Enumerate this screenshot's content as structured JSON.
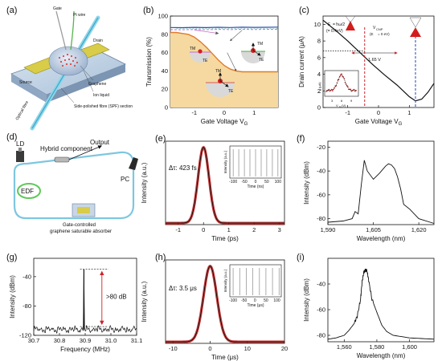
{
  "panels": {
    "a": {
      "tag": "(a)",
      "labels": [
        "Gate",
        "Pt wire",
        "Drain",
        "Source",
        "Graphene",
        "Ion liquid",
        "Side-polished fibre (SPF) section",
        "Optical fibre"
      ]
    },
    "b": {
      "tag": "(b)",
      "xlabel": "Gate Voltage V",
      "xlabel_sub": "G",
      "ylabel": "Transmission (%)",
      "xticks": [
        "-1",
        "0",
        "1"
      ],
      "yticks": [
        "0",
        "20",
        "40",
        "60",
        "80",
        "100"
      ],
      "inset_labels": [
        "TM",
        "TE"
      ]
    },
    "c": {
      "tag": "(c)",
      "xlabel": "Gate Voltage V",
      "xlabel_sub": "G",
      "ylabel": "Drain current (μA)",
      "xticks": [
        "-1",
        "0",
        "1"
      ],
      "yticks": [
        "0",
        "2",
        "4",
        "6",
        "8",
        "10"
      ],
      "annotations": [
        "1.65 V",
        "V",
        "CNP",
        "(E",
        "= 0 eV)",
        "E",
        "= ħω/2",
        "(= 0.4eV)"
      ],
      "inset_labels": [
        "I",
        "D",
        "(μA)",
        "V",
        "G",
        "(V)",
        "3",
        "6",
        "9"
      ]
    },
    "d": {
      "tag": "(d)",
      "labels": [
        "LD",
        "Hybrid component",
        "Output",
        "PC",
        "EDF",
        "Gate-controlled",
        "graphene saturable absorber"
      ]
    },
    "e": {
      "tag": "(e)",
      "annotation": "Δτ: 423 fs",
      "xlabel": "Time (ps)",
      "ylabel": "Intensity (a.u.)",
      "xticks": [
        "-1",
        "0",
        "1",
        "2",
        "3"
      ],
      "inset": {
        "xlabel": "Time (ns)",
        "ylabel": "Intensity (a.u.)",
        "xticks": [
          "-100",
          "-50",
          "0",
          "50",
          "100"
        ]
      }
    },
    "f": {
      "tag": "(f)",
      "xlabel": "Wavelength (nm)",
      "ylabel": "Intensity (dBm)",
      "xticks": [
        "1,590",
        "1,605",
        "1,620"
      ],
      "yticks": [
        "-80",
        "-60",
        "-40",
        "-20"
      ]
    },
    "g": {
      "tag": "(g)",
      "annotation": ">80 dB",
      "xlabel": "Frequency (MHz)",
      "ylabel": "Intensity (dBm)",
      "xticks": [
        "30.7",
        "30.8",
        "30.9",
        "31.0",
        "31.1"
      ],
      "yticks": [
        "-120",
        "-80",
        "-40"
      ]
    },
    "h": {
      "tag": "(h)",
      "annotation": "Δτ: 3.5 μs",
      "xlabel": "Time (μs)",
      "ylabel": "Intensity (a.u.)",
      "xticks": [
        "-10",
        "0",
        "10",
        "20"
      ],
      "inset": {
        "xlabel": "Time (μs)",
        "ylabel": "Intensity (a.u.)",
        "xticks": [
          "-100",
          "-50",
          "0",
          "50",
          "100"
        ]
      }
    },
    "i": {
      "tag": "(i)",
      "xlabel": "Wavelength (nm)",
      "ylabel": "Intensity (dBm)",
      "xticks": [
        "1,560",
        "1,580",
        "1,600"
      ],
      "yticks": [
        "-80",
        "-60",
        "-40"
      ]
    }
  },
  "chart_data": [
    {
      "panel": "b",
      "type": "line",
      "xlim": [
        -1.8,
        1.8
      ],
      "ylim": [
        0,
        100
      ],
      "series": [
        {
          "values_x": [
            -1.8,
            -1.4,
            -1.0,
            -0.6,
            -0.2,
            0.2,
            0.6,
            1.0,
            1.4,
            1.8
          ],
          "values_y": [
            87.5,
            87.3,
            87.6,
            87.4,
            87.7,
            87.5,
            87.8,
            87.6,
            87.7,
            87.9
          ],
          "color": "#2a4fb0"
        },
        {
          "values_x": [
            -1.8,
            -1.4,
            -1.0,
            -0.6,
            -0.2,
            0.2,
            0.6,
            1.0,
            1.4,
            1.8
          ],
          "values_y": [
            85.2,
            85.0,
            85.3,
            85.1,
            85.4,
            85.2,
            85.5,
            85.3,
            85.4,
            85.6
          ],
          "color": "#c070c0"
        },
        {
          "values_x": [
            -1.8,
            -1.6,
            -1.4,
            -1.2,
            -1.0,
            -0.8,
            -0.6,
            -0.4,
            -0.2,
            0.0,
            0.2,
            0.4,
            0.6,
            0.8,
            1.0,
            1.2,
            1.4,
            1.6,
            1.8
          ],
          "values_y": [
            82,
            82,
            81,
            80,
            77,
            72,
            66,
            59,
            52,
            46,
            42,
            40,
            39,
            39,
            39,
            39,
            39,
            39,
            39
          ],
          "color": "#e07a2a",
          "fill": "#f5d9a0"
        }
      ]
    },
    {
      "panel": "c",
      "type": "line",
      "xlim": [
        -1.8,
        1.8
      ],
      "ylim": [
        0,
        11
      ],
      "series": [
        {
          "values_x": [
            -1.8,
            -1.4,
            -1.0,
            -0.6,
            -0.2,
            0.2,
            0.6,
            1.0,
            1.2,
            1.4,
            1.6,
            1.8
          ],
          "values_y": [
            10.5,
            9.3,
            8.0,
            6.6,
            5.2,
            3.9,
            2.7,
            1.3,
            0.8,
            1.0,
            1.8,
            2.9
          ],
          "color": "#111111"
        }
      ],
      "markers": {
        "red_line_x": -0.45,
        "blue_line_x": 1.2,
        "dotted_level_y": 6.8
      }
    },
    {
      "panel": "e",
      "type": "line",
      "xlim": [
        -1.5,
        3.2
      ],
      "ylim": [
        0,
        1.08
      ],
      "pulse": {
        "center": 0.0,
        "fwhm_ps": 0.423
      },
      "inset_pulse_times_ns": [
        -100,
        -75,
        -50,
        -25,
        0,
        25,
        50,
        75,
        100
      ]
    },
    {
      "panel": "f",
      "type": "line",
      "xlim": [
        1590,
        1625
      ],
      "ylim": [
        -85,
        -15
      ],
      "series": [
        {
          "values_x": [
            1590,
            1595,
            1598,
            1599,
            1600,
            1601,
            1602,
            1603,
            1605,
            1607,
            1609,
            1610,
            1611,
            1612,
            1613,
            1614,
            1615,
            1617,
            1620,
            1625
          ],
          "values_y": [
            -83,
            -82,
            -80,
            -74,
            -76,
            -52,
            -31,
            -40,
            -47,
            -42,
            -36,
            -34,
            -35,
            -38,
            -45,
            -55,
            -68,
            -72,
            -80,
            -84
          ]
        }
      ]
    },
    {
      "panel": "g",
      "type": "line",
      "xlim": [
        30.7,
        31.1
      ],
      "ylim": [
        -120,
        -15
      ],
      "peak": {
        "x": 30.895,
        "y": -30
      },
      "noise_floor": -112
    },
    {
      "panel": "h",
      "type": "line",
      "xlim": [
        -12,
        20
      ],
      "ylim": [
        0,
        1.08
      ],
      "pulse": {
        "center": 0.0,
        "fwhm_us": 3.5
      },
      "inset_pulse_times_us": [
        -100,
        -70,
        -40,
        -10,
        20,
        50,
        80,
        110
      ]
    },
    {
      "panel": "i",
      "type": "line",
      "xlim": [
        1550,
        1615
      ],
      "ylim": [
        -85,
        -20
      ],
      "series": [
        {
          "values_x": [
            1550,
            1555,
            1560,
            1563,
            1566,
            1568,
            1570,
            1571,
            1572,
            1573,
            1574,
            1575,
            1577,
            1580,
            1583,
            1586,
            1590,
            1600,
            1615
          ],
          "values_y": [
            -83,
            -82,
            -80,
            -76,
            -71,
            -65,
            -52,
            -38,
            -31,
            -29,
            -30,
            -37,
            -52,
            -62,
            -72,
            -77,
            -80,
            -82,
            -83
          ]
        }
      ]
    }
  ]
}
